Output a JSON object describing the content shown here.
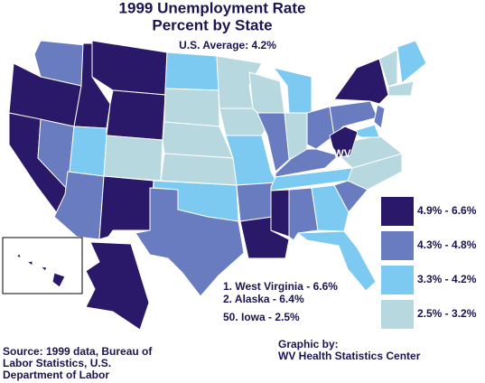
{
  "title": "1999 Unemployment Rate",
  "subtitle": "Percent by State",
  "average": "U.S. Average: 4.2%",
  "map_label": "WV",
  "legend": [
    {
      "label": "4.9% - 6.6%",
      "color": "#2a1968"
    },
    {
      "label": "4.3% - 4.8%",
      "color": "#6a7cc0"
    },
    {
      "label": "3.3% - 4.2%",
      "color": "#7ccaf2"
    },
    {
      "label": "2.5% - 3.2%",
      "color": "#b8d8e0"
    }
  ],
  "rankings": [
    "1. West Virginia - 6.6%",
    "2. Alaska - 6.4%",
    "50. Iowa - 2.5%"
  ],
  "source": [
    "Source: 1999 data, Bureau of",
    "Labor Statistics, U.S.",
    "Department of Labor"
  ],
  "credit": [
    "Graphic by:",
    "WV Health Statistics Center"
  ]
}
